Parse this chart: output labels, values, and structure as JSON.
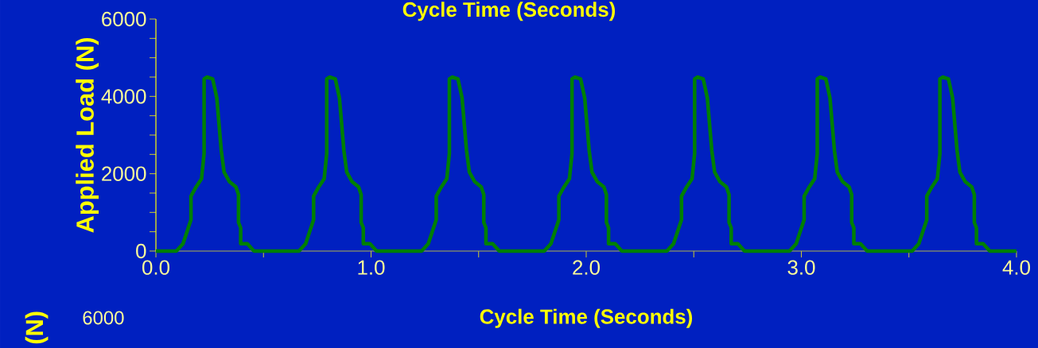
{
  "chart_data": {
    "type": "line",
    "title": "Cycle Time (Seconds)",
    "xlabel": "Cycle Time (Seconds)",
    "ylabel": "Applied Load (N)",
    "annotations": [
      "6000",
      "(N)"
    ],
    "xlim": [
      0,
      4
    ],
    "ylim": [
      0,
      6000
    ],
    "xticks": [
      {
        "value": 0,
        "label": "0.0"
      },
      {
        "value": 1,
        "label": "1.0"
      },
      {
        "value": 2,
        "label": "2.0"
      },
      {
        "value": 3,
        "label": "3.0"
      },
      {
        "value": 4,
        "label": "4.0"
      }
    ],
    "yticks": [
      0,
      2000,
      4000,
      6000
    ],
    "color": "#008000",
    "x": [
      0,
      0.095,
      0.126,
      0.163,
      0.163,
      0.187,
      0.212,
      0.224,
      0.224,
      0.237,
      0.264,
      0.283,
      0.304,
      0.317,
      0.341,
      0.372,
      0.384,
      0.384,
      0.394,
      0.394,
      0.425,
      0.456,
      0.665,
      0.696,
      0.733,
      0.733,
      0.757,
      0.782,
      0.794,
      0.794,
      0.807,
      0.834,
      0.853,
      0.874,
      0.887,
      0.911,
      0.942,
      0.954,
      0.954,
      0.964,
      0.964,
      0.995,
      1.026,
      1.235,
      1.266,
      1.303,
      1.303,
      1.327,
      1.352,
      1.364,
      1.364,
      1.377,
      1.404,
      1.423,
      1.444,
      1.457,
      1.481,
      1.512,
      1.524,
      1.524,
      1.534,
      1.534,
      1.565,
      1.596,
      1.805,
      1.836,
      1.873,
      1.873,
      1.897,
      1.922,
      1.934,
      1.934,
      1.947,
      1.974,
      1.993,
      2.014,
      2.027,
      2.051,
      2.082,
      2.094,
      2.094,
      2.104,
      2.104,
      2.135,
      2.166,
      2.375,
      2.406,
      2.443,
      2.443,
      2.467,
      2.492,
      2.504,
      2.504,
      2.517,
      2.544,
      2.563,
      2.584,
      2.597,
      2.621,
      2.652,
      2.664,
      2.664,
      2.674,
      2.674,
      2.705,
      2.736,
      2.945,
      2.976,
      3.013,
      3.013,
      3.037,
      3.062,
      3.074,
      3.074,
      3.087,
      3.114,
      3.133,
      3.154,
      3.167,
      3.191,
      3.222,
      3.234,
      3.234,
      3.244,
      3.244,
      3.275,
      3.306,
      3.515,
      3.546,
      3.583,
      3.583,
      3.607,
      3.632,
      3.644,
      3.644,
      3.657,
      3.684,
      3.703,
      3.724,
      3.737,
      3.761,
      3.792,
      3.804,
      3.804,
      3.814,
      3.814,
      3.845,
      3.876,
      4.0
    ],
    "values": [
      0,
      0,
      190,
      810,
      1420,
      1660,
      1870,
      2520,
      4450,
      4500,
      4450,
      3960,
      2590,
      2040,
      1800,
      1660,
      1460,
      740,
      600,
      190,
      190,
      0,
      0,
      190,
      810,
      1420,
      1660,
      1870,
      2520,
      4450,
      4500,
      4450,
      3960,
      2590,
      2040,
      1800,
      1660,
      1460,
      740,
      600,
      190,
      190,
      0,
      0,
      190,
      810,
      1420,
      1660,
      1870,
      2520,
      4450,
      4500,
      4450,
      3960,
      2590,
      2040,
      1800,
      1660,
      1460,
      740,
      600,
      190,
      190,
      0,
      0,
      190,
      810,
      1420,
      1660,
      1870,
      2520,
      4450,
      4500,
      4450,
      3960,
      2590,
      2040,
      1800,
      1660,
      1460,
      740,
      600,
      190,
      190,
      0,
      0,
      190,
      810,
      1420,
      1660,
      1870,
      2520,
      4450,
      4500,
      4450,
      3960,
      2590,
      2040,
      1800,
      1660,
      1460,
      740,
      600,
      190,
      190,
      0,
      0,
      190,
      810,
      1420,
      1660,
      1870,
      2520,
      4450,
      4500,
      4450,
      3960,
      2590,
      2040,
      1800,
      1660,
      1460,
      740,
      600,
      190,
      190,
      0,
      0,
      190,
      810,
      1420,
      1660,
      1870,
      2520,
      4450,
      4500,
      4450,
      3960,
      2590,
      2040,
      1800,
      1660,
      1460,
      740,
      600,
      190,
      190,
      0,
      0
    ]
  }
}
